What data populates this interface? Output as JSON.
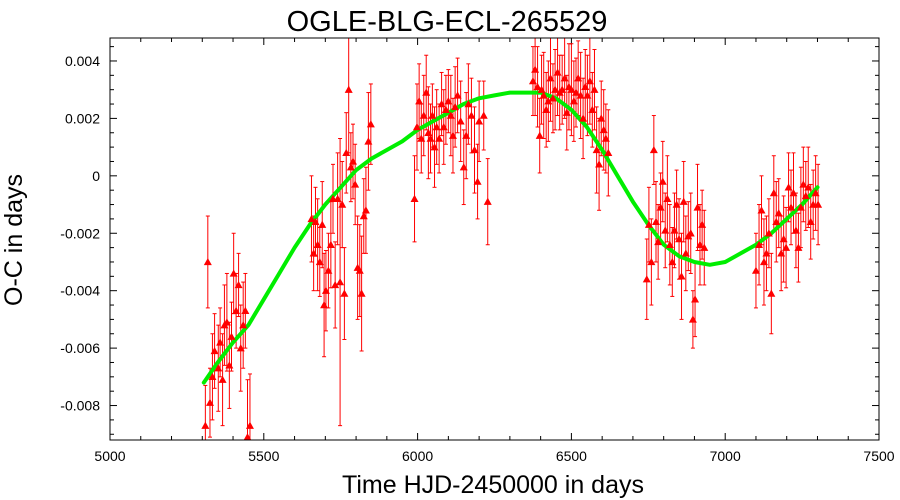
{
  "chart_data": {
    "type": "scatter",
    "title": "OGLE-BLG-ECL-265529",
    "xlabel": "Time HJD-2450000 in days",
    "ylabel": "O-C in days",
    "xlim": [
      5000,
      7500
    ],
    "ylim": [
      -0.0092,
      0.0048
    ],
    "xticks": [
      5000,
      5500,
      6000,
      6500,
      7000,
      7500
    ],
    "yticks": [
      -0.008,
      -0.006,
      -0.004,
      -0.002,
      0,
      0.002,
      0.004
    ],
    "ytick_labels": [
      "-0.008",
      "-0.006",
      "-0.004",
      "-0.002",
      "0",
      "0.002",
      "0.004"
    ],
    "grid": false,
    "colors": {
      "points": "#ff0000",
      "fit": "#00ee00",
      "axes": "#000000"
    },
    "series": [
      {
        "kind": "points-with-errorbars",
        "points": [
          [
            5310,
            -0.0087,
            0.0014
          ],
          [
            5318,
            -0.003,
            0.0016
          ],
          [
            5325,
            -0.0079,
            0.0012
          ],
          [
            5333,
            -0.007,
            0.0015
          ],
          [
            5340,
            -0.0061,
            0.0013
          ],
          [
            5352,
            -0.0067,
            0.0015
          ],
          [
            5358,
            -0.0058,
            0.0012
          ],
          [
            5366,
            -0.0071,
            0.0016
          ],
          [
            5372,
            -0.0052,
            0.0014
          ],
          [
            5380,
            -0.0051,
            0.0017
          ],
          [
            5388,
            -0.0066,
            0.0015
          ],
          [
            5395,
            -0.0056,
            0.0012
          ],
          [
            5402,
            -0.0034,
            0.0014
          ],
          [
            5410,
            -0.0047,
            0.0013
          ],
          [
            5418,
            -0.0038,
            0.0011
          ],
          [
            5425,
            -0.006,
            0.0015
          ],
          [
            5433,
            -0.0052,
            0.0015
          ],
          [
            5440,
            -0.0047,
            0.0013
          ],
          [
            5447,
            -0.0091,
            0.002
          ],
          [
            5455,
            -0.0087,
            0.0018
          ],
          [
            5655,
            -0.0015,
            0.0015
          ],
          [
            5662,
            -0.0027,
            0.0013
          ],
          [
            5668,
            -0.0016,
            0.0012
          ],
          [
            5675,
            -0.0024,
            0.0016
          ],
          [
            5682,
            -0.003,
            0.0012
          ],
          [
            5690,
            -0.0017,
            0.0015
          ],
          [
            5696,
            -0.0045,
            0.0018
          ],
          [
            5702,
            -0.004,
            0.0014
          ],
          [
            5710,
            -0.0033,
            0.0013
          ],
          [
            5718,
            -0.0024,
            0.0015
          ],
          [
            5725,
            -0.0008,
            0.0012
          ],
          [
            5732,
            -0.0038,
            0.0015
          ],
          [
            5740,
            -0.0008,
            0.0016
          ],
          [
            5748,
            -0.0037,
            0.005
          ],
          [
            5755,
            -0.001,
            0.0015
          ],
          [
            5762,
            -0.0041,
            0.0016
          ],
          [
            5768,
            0.0008,
            0.0014
          ],
          [
            5776,
            0.003,
            0.0022
          ],
          [
            5783,
            0.0003,
            0.0012
          ],
          [
            5790,
            0.0005,
            0.0013
          ],
          [
            5797,
            -0.0003,
            0.0014
          ],
          [
            5805,
            -0.0032,
            0.0018
          ],
          [
            5812,
            -0.0033,
            0.0016
          ],
          [
            5818,
            -0.0041,
            0.002
          ],
          [
            5825,
            -0.0014,
            0.0013
          ],
          [
            5832,
            -0.0012,
            0.0015
          ],
          [
            5840,
            0.0012,
            0.0017
          ],
          [
            5848,
            0.0018,
            0.0014
          ],
          [
            5990,
            -0.0008,
            0.0015
          ],
          [
            5998,
            0.0017,
            0.0015
          ],
          [
            6005,
            0.0026,
            0.0013
          ],
          [
            6012,
            0.0013,
            0.0012
          ],
          [
            6020,
            0.0021,
            0.0014
          ],
          [
            6028,
            0.0029,
            0.0013
          ],
          [
            6035,
            0.0015,
            0.0016
          ],
          [
            6042,
            0.0013,
            0.0012
          ],
          [
            6048,
            0.0021,
            0.0011
          ],
          [
            6055,
            0.001,
            0.0014
          ],
          [
            6062,
            0.0017,
            0.0013
          ],
          [
            6070,
            0.0013,
            0.0012
          ],
          [
            6078,
            0.0025,
            0.0011
          ],
          [
            6085,
            0.0017,
            0.0013
          ],
          [
            6092,
            0.0023,
            0.0012
          ],
          [
            6100,
            0.0026,
            0.0011
          ],
          [
            6108,
            0.0021,
            0.0014
          ],
          [
            6115,
            0.0014,
            0.0013
          ],
          [
            6122,
            0.0024,
            0.0014
          ],
          [
            6130,
            0.0028,
            0.0013
          ],
          [
            6140,
            0.0019,
            0.0014
          ],
          [
            6150,
            0.0003,
            0.0013
          ],
          [
            6158,
            0.0014,
            0.0015
          ],
          [
            6165,
            0.0025,
            0.0014
          ],
          [
            6175,
            0.0021,
            0.0013
          ],
          [
            6185,
            0.0009,
            0.0015
          ],
          [
            6195,
            -0.0002,
            0.0013
          ],
          [
            6200,
            0.0019,
            0.0014
          ],
          [
            6215,
            0.0021,
            0.0012
          ],
          [
            6228,
            -0.0009,
            0.0015
          ],
          [
            6375,
            0.0033,
            0.0012
          ],
          [
            6382,
            0.0037,
            0.0016
          ],
          [
            6390,
            0.0031,
            0.0014
          ],
          [
            6397,
            0.0014,
            0.0013
          ],
          [
            6403,
            0.003,
            0.0012
          ],
          [
            6410,
            0.0028,
            0.0015
          ],
          [
            6418,
            0.0023,
            0.0013
          ],
          [
            6425,
            0.0026,
            0.0014
          ],
          [
            6432,
            0.0034,
            0.0015
          ],
          [
            6440,
            0.0027,
            0.0012
          ],
          [
            6447,
            0.003,
            0.0014
          ],
          [
            6455,
            0.0036,
            0.0015
          ],
          [
            6462,
            0.0029,
            0.0013
          ],
          [
            6470,
            0.003,
            0.0012
          ],
          [
            6478,
            0.0034,
            0.0014
          ],
          [
            6485,
            0.0022,
            0.0013
          ],
          [
            6492,
            0.0031,
            0.0015
          ],
          [
            6500,
            0.003,
            0.0016
          ],
          [
            6508,
            0.0026,
            0.0014
          ],
          [
            6515,
            0.0029,
            0.0012
          ],
          [
            6522,
            0.0034,
            0.0013
          ],
          [
            6530,
            0.0028,
            0.0015
          ],
          [
            6538,
            0.002,
            0.0014
          ],
          [
            6545,
            0.0031,
            0.0013
          ],
          [
            6552,
            0.0028,
            0.0014
          ],
          [
            6560,
            0.0033,
            0.0015
          ],
          [
            6568,
            0.0023,
            0.0013
          ],
          [
            6575,
            0.003,
            0.0014
          ],
          [
            6582,
            0.0009,
            0.0015
          ],
          [
            6590,
            0.0004,
            0.0016
          ],
          [
            6597,
            0.002,
            0.0013
          ],
          [
            6605,
            0.0016,
            0.0014
          ],
          [
            6612,
            0.0013,
            0.0012
          ],
          [
            6620,
            0.0008,
            0.0015
          ],
          [
            6745,
            -0.0036,
            0.0014
          ],
          [
            6752,
            -0.0017,
            0.0013
          ],
          [
            6760,
            -0.003,
            0.0015
          ],
          [
            6768,
            0.0009,
            0.0012
          ],
          [
            6775,
            -0.0016,
            0.0014
          ],
          [
            6782,
            -0.0023,
            0.0013
          ],
          [
            6790,
            -0.0011,
            0.0012
          ],
          [
            6797,
            -0.0002,
            0.0014
          ],
          [
            6805,
            -0.0019,
            0.0013
          ],
          [
            6812,
            -0.0008,
            0.0015
          ],
          [
            6820,
            -0.0024,
            0.0014
          ],
          [
            6828,
            -0.003,
            0.0012
          ],
          [
            6835,
            -0.0019,
            0.0013
          ],
          [
            6842,
            -0.001,
            0.0012
          ],
          [
            6850,
            -0.0022,
            0.0014
          ],
          [
            6858,
            -0.0035,
            0.0015
          ],
          [
            6865,
            -0.0009,
            0.0014
          ],
          [
            6872,
            -0.0027,
            0.0013
          ],
          [
            6880,
            -0.0021,
            0.0012
          ],
          [
            6888,
            -0.002,
            0.0014
          ],
          [
            6895,
            -0.005,
            0.001
          ],
          [
            6902,
            -0.0043,
            0.0013
          ],
          [
            6910,
            -0.0011,
            0.0015
          ],
          [
            6918,
            -0.0024,
            0.0014
          ],
          [
            6925,
            -0.0017,
            0.0012
          ],
          [
            6932,
            -0.0025,
            0.0013
          ],
          [
            7100,
            -0.0033,
            0.0013
          ],
          [
            7110,
            -0.0024,
            0.0014
          ],
          [
            7118,
            -0.0012,
            0.0012
          ],
          [
            7126,
            -0.003,
            0.0015
          ],
          [
            7134,
            -0.0027,
            0.0013
          ],
          [
            7142,
            -0.002,
            0.0012
          ],
          [
            7150,
            -0.0041,
            0.0014
          ],
          [
            7158,
            -0.0006,
            0.0013
          ],
          [
            7166,
            -0.0016,
            0.0014
          ],
          [
            7174,
            -0.0013,
            0.0012
          ],
          [
            7182,
            -0.0027,
            0.0013
          ],
          [
            7190,
            -0.0022,
            0.0015
          ],
          [
            7198,
            -0.0025,
            0.0014
          ],
          [
            7206,
            -0.0004,
            0.0012
          ],
          [
            7214,
            -0.0011,
            0.0013
          ],
          [
            7222,
            -0.0006,
            0.0014
          ],
          [
            7230,
            -0.0019,
            0.0013
          ],
          [
            7238,
            -0.0025,
            0.0012
          ],
          [
            7246,
            -0.0011,
            0.0014
          ],
          [
            7254,
            -0.0003,
            0.0013
          ],
          [
            7262,
            -0.0007,
            0.0012
          ],
          [
            7270,
            -0.0004,
            0.0014
          ],
          [
            7278,
            -0.0016,
            0.0013
          ],
          [
            7286,
            -0.001,
            0.0012
          ],
          [
            7294,
            -0.0006,
            0.0013
          ],
          [
            7302,
            -0.001,
            0.0014
          ]
        ]
      },
      {
        "kind": "fit-curve",
        "x": [
          5305,
          5350,
          5400,
          5450,
          5500,
          5550,
          5600,
          5650,
          5700,
          5750,
          5800,
          5850,
          5900,
          5950,
          6000,
          6050,
          6100,
          6150,
          6200,
          6250,
          6300,
          6350,
          6400,
          6450,
          6500,
          6550,
          6600,
          6650,
          6700,
          6750,
          6800,
          6850,
          6900,
          6950,
          7000,
          7050,
          7100,
          7150,
          7200,
          7250,
          7300
        ],
        "y": [
          -0.0072,
          -0.0065,
          -0.0058,
          -0.0052,
          -0.0043,
          -0.0034,
          -0.0025,
          -0.0017,
          -0.001,
          -0.0004,
          0.0002,
          0.0006,
          0.0009,
          0.0012,
          0.0016,
          0.0019,
          0.0022,
          0.0025,
          0.0027,
          0.0028,
          0.0029,
          0.0029,
          0.0029,
          0.0027,
          0.0023,
          0.0017,
          0.0009,
          0.0,
          -0.0009,
          -0.0017,
          -0.0024,
          -0.0028,
          -0.003,
          -0.0031,
          -0.003,
          -0.0027,
          -0.0024,
          -0.002,
          -0.0015,
          -0.001,
          -0.0004
        ]
      }
    ]
  }
}
